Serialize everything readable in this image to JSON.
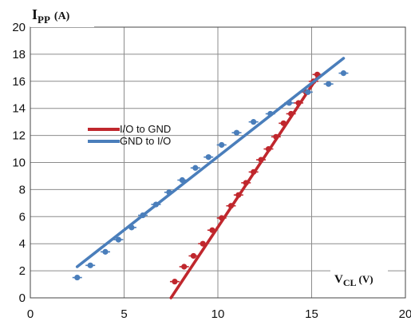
{
  "chart_data": {
    "type": "scatter",
    "ylabel_main": "I",
    "ylabel_sub": "PP",
    "ylabel_unit": "(A)",
    "xlabel_main": "V",
    "xlabel_sub": "CL",
    "xlabel_unit": "(V)",
    "xlim": [
      0,
      20
    ],
    "ylim": [
      0,
      20
    ],
    "xticks": [
      "0",
      "5",
      "10",
      "15",
      "20"
    ],
    "yticks": [
      "0",
      "2",
      "4",
      "6",
      "8",
      "10",
      "12",
      "14",
      "16",
      "18",
      "20"
    ],
    "grid": true,
    "legend_position": "center-left",
    "series": [
      {
        "name": "I/O to GND",
        "color": "#c0272d",
        "points": [
          [
            7.7,
            1.2
          ],
          [
            8.2,
            2.3
          ],
          [
            8.7,
            3.1
          ],
          [
            9.2,
            4.0
          ],
          [
            9.7,
            5.0
          ],
          [
            10.2,
            5.9
          ],
          [
            10.7,
            6.8
          ],
          [
            11.1,
            7.6
          ],
          [
            11.5,
            8.5
          ],
          [
            11.9,
            9.3
          ],
          [
            12.3,
            10.2
          ],
          [
            12.7,
            11.0
          ],
          [
            13.1,
            11.9
          ],
          [
            13.5,
            12.9
          ],
          [
            13.9,
            13.6
          ],
          [
            14.3,
            14.4
          ],
          [
            14.7,
            15.2
          ],
          [
            15.1,
            16.0
          ],
          [
            15.3,
            16.5
          ]
        ],
        "fit": [
          [
            7.5,
            0.0
          ],
          [
            15.4,
            16.5
          ]
        ]
      },
      {
        "name": "GND to I/O",
        "color": "#4a7ebb",
        "points": [
          [
            2.5,
            1.5
          ],
          [
            3.2,
            2.4
          ],
          [
            4.0,
            3.4
          ],
          [
            4.7,
            4.3
          ],
          [
            5.4,
            5.2
          ],
          [
            6.0,
            6.1
          ],
          [
            6.7,
            6.9
          ],
          [
            7.4,
            7.8
          ],
          [
            8.1,
            8.7
          ],
          [
            8.8,
            9.6
          ],
          [
            9.5,
            10.4
          ],
          [
            10.2,
            11.3
          ],
          [
            11.0,
            12.2
          ],
          [
            11.9,
            13.0
          ],
          [
            12.8,
            13.6
          ],
          [
            13.8,
            14.4
          ],
          [
            14.8,
            15.2
          ],
          [
            15.9,
            15.8
          ],
          [
            16.7,
            16.6
          ]
        ],
        "fit": [
          [
            2.5,
            2.3
          ],
          [
            16.7,
            17.7
          ]
        ]
      }
    ]
  }
}
